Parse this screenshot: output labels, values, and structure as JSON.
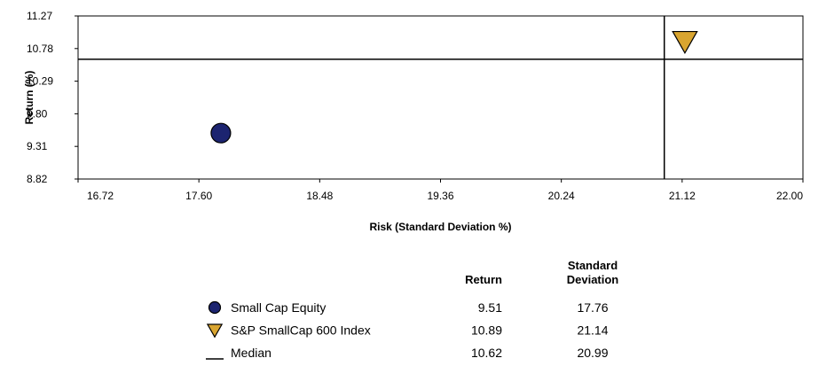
{
  "chart_data": {
    "type": "scatter",
    "xlabel": "Risk (Standard Deviation %)",
    "ylabel": "Return (%)",
    "xlim": [
      16.72,
      22.0
    ],
    "xticks": [
      16.72,
      {
        "value": 17.6,
        "label": "17.60"
      },
      18.48,
      19.36,
      20.24,
      21.12,
      {
        "value": 22.0,
        "label": "22.00"
      }
    ],
    "ylim": [
      8.82,
      11.27
    ],
    "yticks": [
      8.82,
      9.31,
      {
        "value": 9.8,
        "label": "9.80"
      },
      10.29,
      10.78,
      11.27
    ],
    "series": [
      {
        "name": "Small Cap Equity",
        "color": "#1c2470",
        "marker": "circle",
        "x": [
          17.76
        ],
        "y": [
          9.51
        ]
      },
      {
        "name": "S&P SmallCap 600 Index",
        "color": "#d9a530",
        "marker": "triangle-down",
        "x": [
          21.14
        ],
        "y": [
          10.89
        ]
      }
    ],
    "median": {
      "name": "Median",
      "x": 20.99,
      "y": 10.62
    },
    "table_headers": [
      "Return",
      "Standard Deviation"
    ]
  }
}
